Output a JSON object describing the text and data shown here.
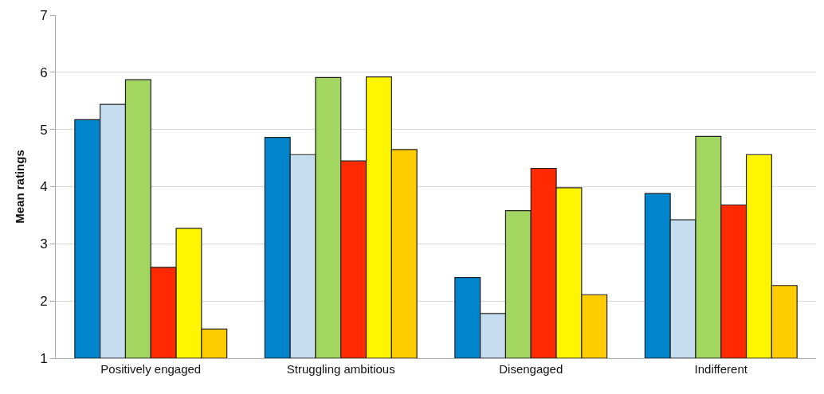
{
  "chart_data": {
    "type": "bar",
    "ylabel": "Mean ratings",
    "categories": [
      "Positively engaged",
      "Struggling ambitious",
      "Disengaged",
      "Indifferent"
    ],
    "series": [
      {
        "color": "#0084cc",
        "values": [
          5.17,
          4.86,
          2.41,
          3.88
        ]
      },
      {
        "color": "#c6dcef",
        "values": [
          5.44,
          4.56,
          1.78,
          3.42
        ]
      },
      {
        "color": "#a2d661",
        "values": [
          5.87,
          5.91,
          3.58,
          4.88
        ]
      },
      {
        "color": "#ff2a00",
        "values": [
          2.59,
          4.45,
          4.32,
          3.68
        ]
      },
      {
        "color": "#fff500",
        "values": [
          3.27,
          5.92,
          3.98,
          4.56
        ]
      },
      {
        "color": "#ffcc00",
        "values": [
          1.51,
          4.65,
          2.11,
          2.27
        ]
      }
    ],
    "ylim": [
      1,
      7
    ],
    "yticks": [
      1,
      2,
      3,
      4,
      5,
      6,
      7
    ],
    "grid": "y"
  }
}
